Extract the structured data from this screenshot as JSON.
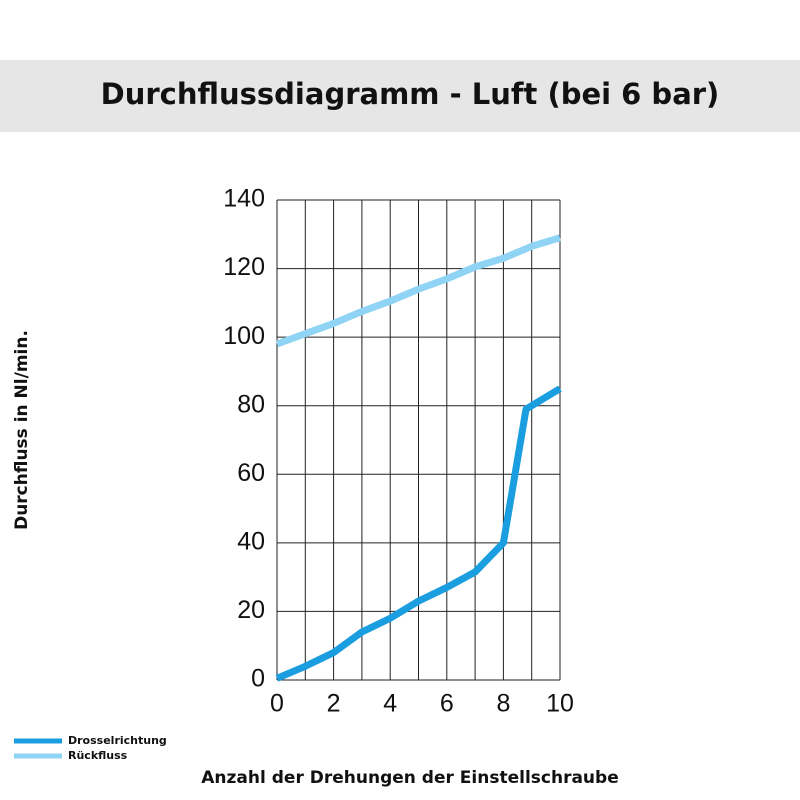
{
  "chart_data": {
    "type": "line",
    "title": "Durchflussdiagramm - Luft (bei 6 bar)",
    "x_label": "Anzahl der Drehungen der Einstellschraube",
    "y_label": "Durchfluss in Nl/min.",
    "xlim": [
      0,
      10
    ],
    "xticks": [
      0,
      2,
      4,
      6,
      8,
      10
    ],
    "x_minor_ticks": [
      1,
      3,
      5,
      7,
      9
    ],
    "ylim": [
      0,
      140
    ],
    "yticks": [
      0,
      20,
      40,
      60,
      80,
      100,
      120,
      140
    ],
    "grid": true,
    "legend": "bottom-left",
    "series": [
      {
        "name": "Drosselrichtung",
        "color": "#1a9ee0",
        "x": [
          0,
          1,
          2,
          3,
          4,
          5,
          6,
          7,
          8,
          8.8,
          10
        ],
        "values": [
          0.5,
          4,
          8,
          14,
          18,
          23,
          27,
          31.5,
          40,
          79,
          85
        ]
      },
      {
        "name": "Rückfluss",
        "color": "#8fd3f5",
        "x": [
          0,
          1,
          2,
          3,
          4,
          5,
          6,
          7,
          8,
          9,
          10
        ],
        "values": [
          98,
          101,
          104,
          107.5,
          110.5,
          114,
          117,
          120.5,
          123,
          126.5,
          129
        ]
      }
    ]
  }
}
